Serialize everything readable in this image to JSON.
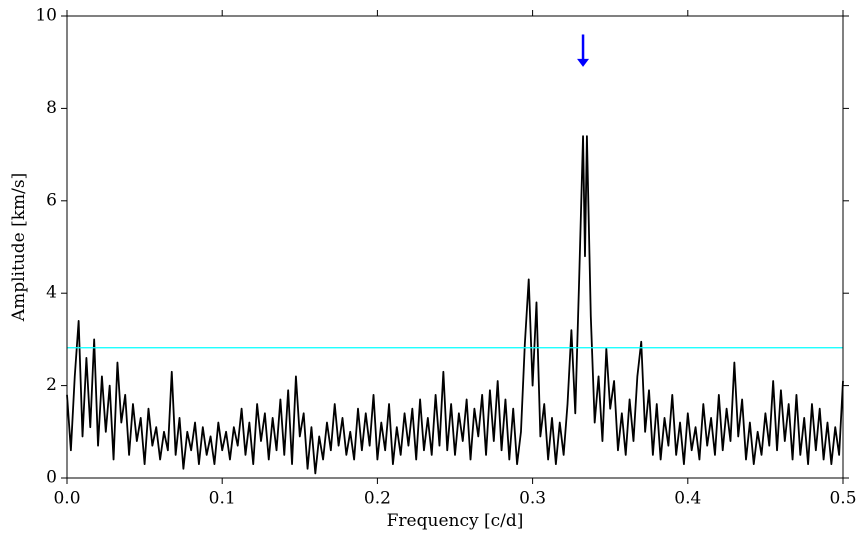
{
  "chart_data": {
    "type": "line",
    "xlabel": "Frequency [c/d]",
    "ylabel": "Amplitude [km/s]",
    "xlim": [
      0,
      0.5
    ],
    "ylim": [
      0,
      10
    ],
    "xticks": [
      {
        "value": 0,
        "label": "0.0"
      },
      0.1,
      0.2,
      0.3,
      0.4,
      0.5
    ],
    "yticks": [
      0,
      2,
      4,
      6,
      8,
      10
    ],
    "hline": {
      "value": 2.82,
      "color": "#00ffff"
    },
    "arrow": {
      "x": 0.3325,
      "y_start": 9.6,
      "y_end": 8.9,
      "color": "#0000ff"
    },
    "series": [
      {
        "color": "#000000",
        "x": [
          0,
          0.0025,
          0.005,
          0.0075,
          0.01,
          0.0125,
          0.015,
          0.0175,
          0.02,
          0.0225,
          0.025,
          0.0275,
          0.03,
          0.0325,
          0.035,
          0.0375,
          0.04,
          0.0425,
          0.045,
          0.0475,
          0.05,
          0.0525,
          0.055,
          0.0575,
          0.06,
          0.0625,
          0.065,
          0.0675,
          0.07,
          0.0725,
          0.075,
          0.0775,
          0.08,
          0.0825,
          0.085,
          0.0875,
          0.09,
          0.0925,
          0.095,
          0.0975,
          0.1,
          0.1025,
          0.105,
          0.1075,
          0.11,
          0.1125,
          0.115,
          0.1175,
          0.12,
          0.1225,
          0.125,
          0.1275,
          0.13,
          0.1325,
          0.135,
          0.1375,
          0.14,
          0.1425,
          0.145,
          0.1475,
          0.15,
          0.1525,
          0.155,
          0.1575,
          0.16,
          0.1625,
          0.165,
          0.1675,
          0.17,
          0.1725,
          0.175,
          0.1775,
          0.18,
          0.1825,
          0.185,
          0.1875,
          0.19,
          0.1925,
          0.195,
          0.1975,
          0.2,
          0.2025,
          0.205,
          0.2075,
          0.21,
          0.2125,
          0.215,
          0.2175,
          0.22,
          0.2225,
          0.225,
          0.2275,
          0.23,
          0.2325,
          0.235,
          0.2375,
          0.24,
          0.2425,
          0.245,
          0.2475,
          0.25,
          0.2525,
          0.255,
          0.2575,
          0.26,
          0.2625,
          0.265,
          0.2675,
          0.27,
          0.2725,
          0.275,
          0.2775,
          0.28,
          0.2825,
          0.285,
          0.2875,
          0.29,
          0.2925,
          0.295,
          0.2975,
          0.3,
          0.3025,
          0.305,
          0.3075,
          0.31,
          0.3125,
          0.315,
          0.3175,
          0.32,
          0.3225,
          0.325,
          0.3275,
          0.33,
          0.3325,
          0.33375,
          0.335,
          0.3375,
          0.34,
          0.3425,
          0.345,
          0.3475,
          0.35,
          0.3525,
          0.355,
          0.3575,
          0.36,
          0.3625,
          0.365,
          0.3675,
          0.37,
          0.3725,
          0.375,
          0.3775,
          0.38,
          0.3825,
          0.385,
          0.3875,
          0.39,
          0.3925,
          0.395,
          0.3975,
          0.4,
          0.4025,
          0.405,
          0.4075,
          0.41,
          0.4125,
          0.415,
          0.4175,
          0.42,
          0.4225,
          0.425,
          0.4275,
          0.43,
          0.4325,
          0.435,
          0.4375,
          0.44,
          0.4425,
          0.445,
          0.4475,
          0.45,
          0.4525,
          0.455,
          0.4575,
          0.46,
          0.4625,
          0.465,
          0.4675,
          0.47,
          0.4725,
          0.475,
          0.4775,
          0.48,
          0.4825,
          0.485,
          0.4875,
          0.49,
          0.4925,
          0.495,
          0.4975,
          0.5
        ],
        "values": [
          1.8,
          0.6,
          2.2,
          3.4,
          0.9,
          2.6,
          1.1,
          3.0,
          0.7,
          2.2,
          1.0,
          2.0,
          0.4,
          2.5,
          1.2,
          1.8,
          0.5,
          1.6,
          0.8,
          1.3,
          0.3,
          1.5,
          0.7,
          1.1,
          0.4,
          1.0,
          0.6,
          2.3,
          0.5,
          1.3,
          0.2,
          1.0,
          0.6,
          1.2,
          0.3,
          1.1,
          0.5,
          0.9,
          0.3,
          1.2,
          0.6,
          1.0,
          0.4,
          1.1,
          0.7,
          1.5,
          0.5,
          1.2,
          0.3,
          1.6,
          0.8,
          1.4,
          0.4,
          1.3,
          0.6,
          1.7,
          0.5,
          1.9,
          0.3,
          2.2,
          0.9,
          1.4,
          0.2,
          1.1,
          0.1,
          0.9,
          0.4,
          1.2,
          0.6,
          1.6,
          0.7,
          1.3,
          0.5,
          1.0,
          0.4,
          1.5,
          0.6,
          1.4,
          0.7,
          1.8,
          0.4,
          1.2,
          0.6,
          1.6,
          0.3,
          1.1,
          0.5,
          1.4,
          0.7,
          1.5,
          0.4,
          1.7,
          0.6,
          1.3,
          0.5,
          1.8,
          0.7,
          2.3,
          0.6,
          1.6,
          0.5,
          1.4,
          0.8,
          1.7,
          0.4,
          1.5,
          0.9,
          1.8,
          0.5,
          1.9,
          0.8,
          2.1,
          0.6,
          1.7,
          0.4,
          1.5,
          0.3,
          1.0,
          2.9,
          4.3,
          2.0,
          3.8,
          0.9,
          1.6,
          0.4,
          1.3,
          0.3,
          1.2,
          0.5,
          1.6,
          3.2,
          1.4,
          4.3,
          7.4,
          4.8,
          7.4,
          3.5,
          1.2,
          2.2,
          0.8,
          2.8,
          1.5,
          2.1,
          0.6,
          1.4,
          0.5,
          1.7,
          0.8,
          2.2,
          2.95,
          1.0,
          1.9,
          0.5,
          1.6,
          0.4,
          1.3,
          0.7,
          1.8,
          0.5,
          1.2,
          0.3,
          1.4,
          0.6,
          1.1,
          0.4,
          1.6,
          0.7,
          1.3,
          0.5,
          1.8,
          0.6,
          1.5,
          0.8,
          2.5,
          0.9,
          1.7,
          0.4,
          1.2,
          0.3,
          1.0,
          0.5,
          1.4,
          0.7,
          2.1,
          0.6,
          1.9,
          0.8,
          1.6,
          0.4,
          1.8,
          0.5,
          1.3,
          0.3,
          1.6,
          0.6,
          1.5,
          0.4,
          1.2,
          0.3,
          1.1,
          0.5,
          2.1
        ]
      }
    ]
  }
}
